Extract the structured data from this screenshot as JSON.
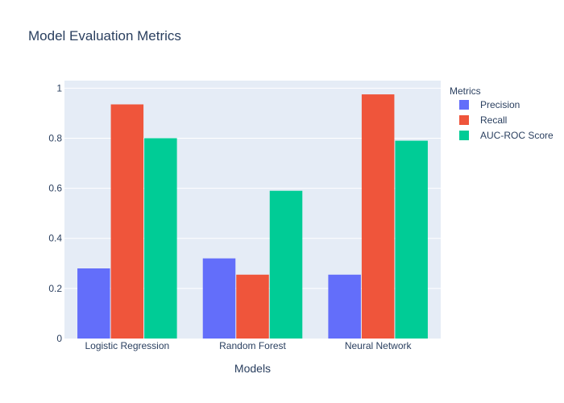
{
  "chart_data": {
    "type": "bar",
    "title": "Model Evaluation Metrics",
    "xlabel": "Models",
    "ylabel": "",
    "categories": [
      "Logistic Regression",
      "Random Forest",
      "Neural Network"
    ],
    "series": [
      {
        "name": "Precision",
        "values": [
          0.28,
          0.32,
          0.255
        ],
        "color": "#636efa"
      },
      {
        "name": "Recall",
        "values": [
          0.935,
          0.255,
          0.975
        ],
        "color": "#ef553b"
      },
      {
        "name": "AUC-ROC Score",
        "values": [
          0.8,
          0.59,
          0.79
        ],
        "color": "#00cc96"
      }
    ],
    "ylim": [
      0,
      1.03
    ],
    "yticks": [
      0,
      0.2,
      0.4,
      0.6,
      0.8,
      1
    ],
    "ytick_labels": [
      "0",
      "0.2",
      "0.4",
      "0.6",
      "0.8",
      "1"
    ],
    "legend_title": "Metrics",
    "legend_position": "top-right",
    "grid": true,
    "plot_background": "#e5ecf6",
    "text_color": "#2a3f5f"
  }
}
